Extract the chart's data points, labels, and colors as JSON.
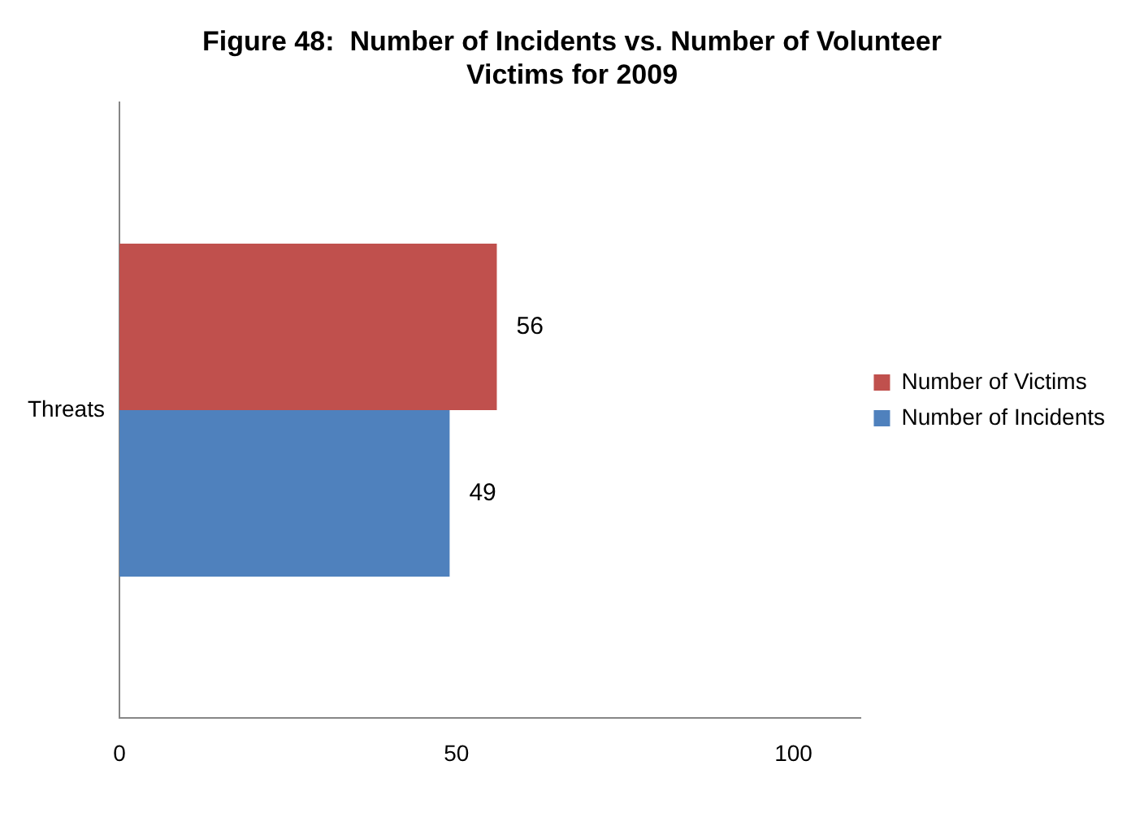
{
  "chart_data": {
    "type": "bar",
    "orientation": "horizontal",
    "title": "Figure 48:  Number of Incidents vs. Number of Volunteer Victims for 2009",
    "categories": [
      "Threats"
    ],
    "series": [
      {
        "name": "Number of Victims",
        "color": "#c0504d",
        "values": [
          56
        ]
      },
      {
        "name": "Number of Incidents",
        "color": "#4f81bd",
        "values": [
          49
        ]
      }
    ],
    "xlim": [
      0,
      110
    ],
    "xticks": [
      0,
      50,
      100
    ],
    "grid": false,
    "legend": "right",
    "data_labels": true
  }
}
